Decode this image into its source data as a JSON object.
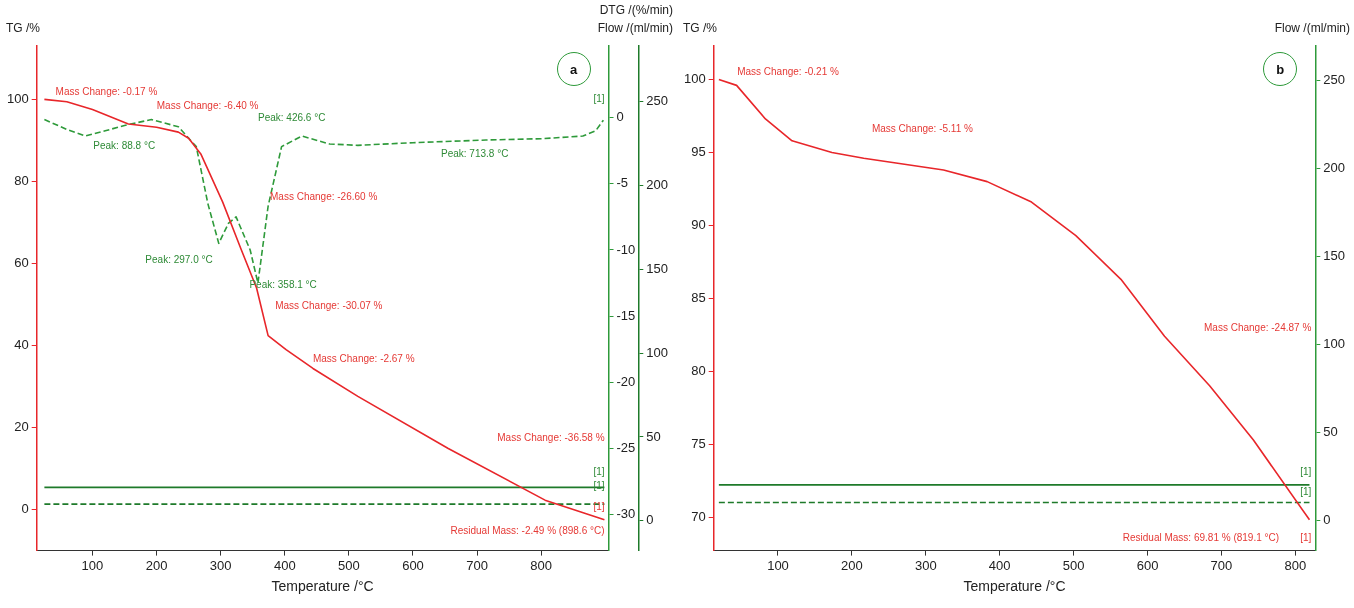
{
  "chart_data": [
    {
      "type": "line",
      "title": "a",
      "xlabel": "Temperature /°C",
      "ylabel": "TG /%",
      "y2label": "DTG /(%/min)",
      "y3label": "Flow /(ml/min)",
      "xlim": [
        13,
        905
      ],
      "xticks": [
        100,
        200,
        300,
        400,
        500,
        600,
        700,
        800
      ],
      "ylim": [
        -10,
        113
      ],
      "yticks": [
        0,
        20,
        40,
        60,
        80,
        100
      ],
      "y2lim": [
        -32.7,
        5.4
      ],
      "y2ticks": [
        -30,
        -25,
        -20,
        -15,
        -10,
        -5,
        0
      ],
      "y3lim": [
        -17.7,
        283
      ],
      "y3ticks": [
        0,
        50,
        100,
        150,
        200,
        250
      ],
      "series": [
        {
          "color": "#e8262a",
          "x": [
            25,
            60,
            100,
            156,
            200,
            234,
            250,
            269,
            303,
            332,
            356,
            374,
            402,
            444,
            514,
            655,
            806,
            898.6
          ],
          "values": [
            100,
            99.4,
            97.5,
            94,
            93.2,
            92,
            90.5,
            86.7,
            75,
            63.4,
            54,
            42.4,
            39,
            34.4,
            27.6,
            14.9,
            2.3,
            -2.5
          ]
        },
        {
          "axis": "y2",
          "color": "#2e9a3a",
          "line_style": "dashed",
          "x": [
            25,
            60,
            88.8,
            120,
            150,
            192,
            234,
            262,
            280,
            297.0,
            312,
            324,
            346,
            358.1,
            374,
            395,
            426.6,
            470,
            514,
            600,
            713.8,
            800,
            865,
            885,
            897
          ],
          "values": [
            -0.15,
            -0.9,
            -1.4,
            -1.0,
            -0.6,
            -0.15,
            -0.7,
            -2.2,
            -6.5,
            -9.5,
            -8.0,
            -7.5,
            -10.0,
            -12.5,
            -6.7,
            -2.2,
            -1.4,
            -2.0,
            -2.1,
            -1.9,
            -1.7,
            -1.6,
            -1.4,
            -1.0,
            -0.2
          ]
        },
        {
          "axis": "y3",
          "color": "#1e7a2a",
          "x": [
            25,
            898.6
          ],
          "values": [
            20,
            20
          ]
        },
        {
          "axis": "y3",
          "color": "#1e7a2a",
          "line_style": "dashed",
          "x": [
            25,
            898.6
          ],
          "values": [
            10,
            10
          ]
        }
      ],
      "annotations": [
        "Mass Change: -0.17 %",
        "Mass Change: -6.40 %",
        "Mass Change: -26.60 %",
        "Mass Change: -30.07 %",
        "Mass Change: -2.67 %",
        "Mass Change: -36.58 %",
        "Residual Mass: -2.49 % (898.6 °C)",
        "Peak: 88.8 °C",
        "Peak: 297.0 °C",
        "Peak: 358.1 °C",
        "Peak: 426.6 °C",
        "Peak: 713.8 °C",
        "[1]",
        "[1]",
        "[1]",
        "[1]"
      ]
    },
    {
      "type": "line",
      "title": "b",
      "xlabel": "Temperature /°C",
      "ylabel": "TG /%",
      "y2label": "Flow /(ml/min)",
      "xlim": [
        13,
        827
      ],
      "xticks": [
        100,
        200,
        300,
        400,
        500,
        600,
        700,
        800
      ],
      "ylim": [
        67.7,
        102.3
      ],
      "yticks": [
        70,
        75,
        80,
        85,
        90,
        95,
        100
      ],
      "y2lim": [
        -17.4,
        269.6
      ],
      "y2ticks": [
        0,
        50,
        100,
        150,
        200,
        250
      ],
      "series": [
        {
          "color": "#e8262a",
          "x": [
            20,
            44,
            83,
            119,
            173,
            216,
            324,
            383,
            443,
            503,
            564,
            623,
            684,
            743,
            819.1
          ],
          "values": [
            100,
            99.6,
            97.3,
            95.8,
            95,
            94.6,
            93.8,
            93,
            91.6,
            89.3,
            86.3,
            82.4,
            79,
            75.3,
            69.81
          ]
        },
        {
          "axis": "y2",
          "color": "#1e7a2a",
          "x": [
            20,
            819.1
          ],
          "values": [
            20,
            20
          ]
        },
        {
          "axis": "y2",
          "color": "#1e7a2a",
          "line_style": "dashed",
          "x": [
            20,
            819.1
          ],
          "values": [
            10,
            10
          ]
        }
      ],
      "annotations": [
        "Mass Change: -0.21 %",
        "Mass Change: -5.11 %",
        "Mass Change: -24.87 %",
        "Residual Mass: 69.81 % (819.1 °C)",
        "[1]",
        "[1]",
        "[1]"
      ]
    }
  ]
}
